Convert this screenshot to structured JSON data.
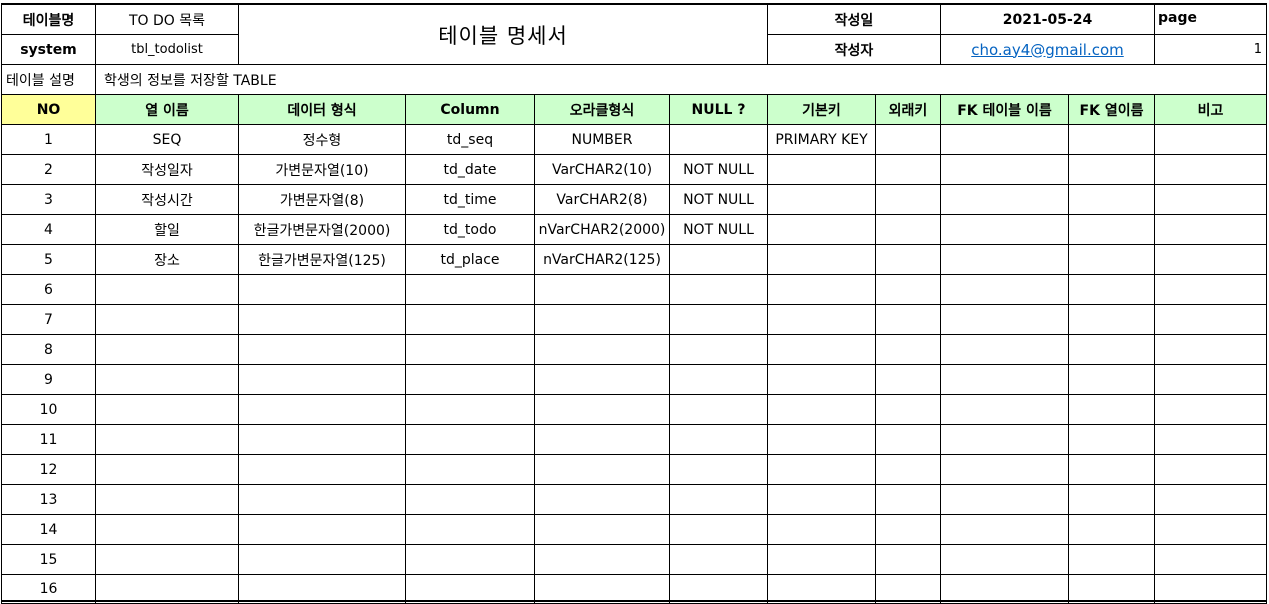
{
  "header": {
    "table_name_label": "테이블명",
    "table_name_value": "TO DO 목록",
    "doc_title": "테이블 명세서",
    "created_date_label": "작성일",
    "created_date_value": "2021-05-24",
    "page_label": "page",
    "system_label": "system",
    "system_value": "tbl_todolist",
    "author_label": "작성자",
    "author_value": "cho.ay4@gmail.com",
    "page_value": "1",
    "description_label": "테이블 설명",
    "description_value": "학생의 정보를 저장할 TABLE"
  },
  "columns": [
    "NO",
    "열 이름",
    "데이터 형식",
    "Column",
    "오라클형식",
    "NULL ?",
    "기본키",
    "외래키",
    "FK 테이블 이름",
    "FK 열이름",
    "비고"
  ],
  "rows": [
    [
      "1",
      "SEQ",
      "정수형",
      "td_seq",
      "NUMBER",
      "",
      "PRIMARY KEY",
      "",
      "",
      "",
      ""
    ],
    [
      "2",
      "작성일자",
      "가변문자열(10)",
      "td_date",
      "VarCHAR2(10)",
      "NOT NULL",
      "",
      "",
      "",
      "",
      ""
    ],
    [
      "3",
      "작성시간",
      "가변문자열(8)",
      "td_time",
      "VarCHAR2(8)",
      "NOT NULL",
      "",
      "",
      "",
      "",
      ""
    ],
    [
      "4",
      "할일",
      "한글가변문자열(2000)",
      "td_todo",
      "nVarCHAR2(2000)",
      "NOT NULL",
      "",
      "",
      "",
      "",
      ""
    ],
    [
      "5",
      "장소",
      "한글가변문자열(125)",
      "td_place",
      "nVarCHAR2(125)",
      "",
      "",
      "",
      "",
      "",
      ""
    ],
    [
      "6",
      "",
      "",
      "",
      "",
      "",
      "",
      "",
      "",
      "",
      ""
    ],
    [
      "7",
      "",
      "",
      "",
      "",
      "",
      "",
      "",
      "",
      "",
      ""
    ],
    [
      "8",
      "",
      "",
      "",
      "",
      "",
      "",
      "",
      "",
      "",
      ""
    ],
    [
      "9",
      "",
      "",
      "",
      "",
      "",
      "",
      "",
      "",
      "",
      ""
    ],
    [
      "10",
      "",
      "",
      "",
      "",
      "",
      "",
      "",
      "",
      "",
      ""
    ],
    [
      "11",
      "",
      "",
      "",
      "",
      "",
      "",
      "",
      "",
      "",
      ""
    ],
    [
      "12",
      "",
      "",
      "",
      "",
      "",
      "",
      "",
      "",
      "",
      ""
    ],
    [
      "13",
      "",
      "",
      "",
      "",
      "",
      "",
      "",
      "",
      "",
      ""
    ],
    [
      "14",
      "",
      "",
      "",
      "",
      "",
      "",
      "",
      "",
      "",
      ""
    ],
    [
      "15",
      "",
      "",
      "",
      "",
      "",
      "",
      "",
      "",
      "",
      ""
    ],
    [
      "16",
      "",
      "",
      "",
      "",
      "",
      "",
      "",
      "",
      "",
      ""
    ]
  ],
  "colors": {
    "header_green": "#ccffcc",
    "header_yellow": "#ffff99",
    "link_blue": "#0563c1"
  }
}
